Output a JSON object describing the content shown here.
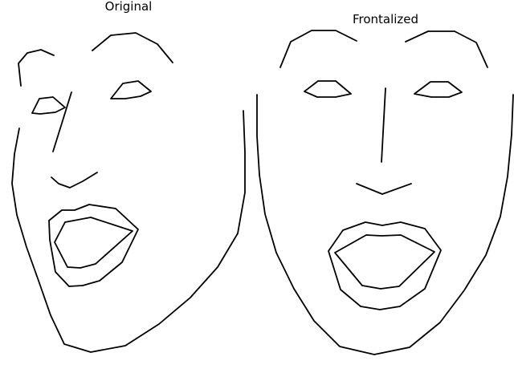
{
  "figure": {
    "panels": [
      {
        "title": "Original"
      },
      {
        "title": "Frontalized"
      }
    ],
    "line_color": "#000000",
    "background": "#ffffff"
  }
}
